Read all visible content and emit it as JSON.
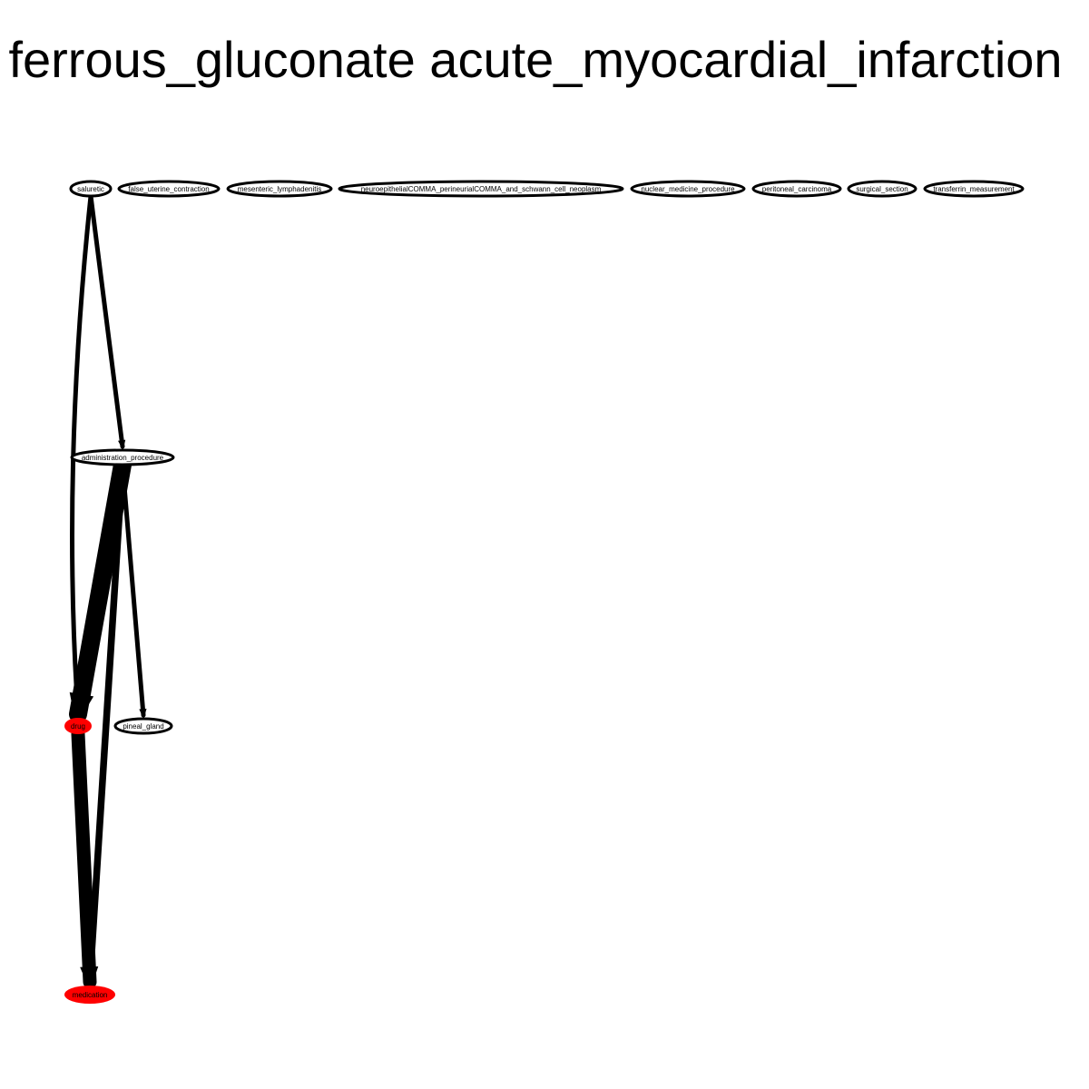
{
  "title": "ferrous_gluconate acute_myocardial_infarction",
  "colors": {
    "highlight": "#ff0000",
    "default_fill": "#ffffff",
    "stroke": "#000000"
  },
  "nodes": [
    {
      "id": "saluretic",
      "label": "saluretic",
      "highlight": false
    },
    {
      "id": "false_uterine_contraction",
      "label": "false_uterine_contraction",
      "highlight": false
    },
    {
      "id": "mesenteric_lymphadenitis",
      "label": "mesenteric_lymphadenitis",
      "highlight": false
    },
    {
      "id": "neuroepithelial",
      "label": "neuroepithelialCOMMA_perineurialCOMMA_and_schwann_cell_neoplasm",
      "highlight": false
    },
    {
      "id": "nuclear_medicine_procedure",
      "label": "nuclear_medicine_procedure",
      "highlight": false
    },
    {
      "id": "peritoneal_carcinoma",
      "label": "peritoneal_carcinoma",
      "highlight": false
    },
    {
      "id": "surgical_section",
      "label": "surgical_section",
      "highlight": false
    },
    {
      "id": "transferrin_measurement",
      "label": "transferrin_measurement",
      "highlight": false
    },
    {
      "id": "administration_procedure",
      "label": "administration_procedure",
      "highlight": false
    },
    {
      "id": "drug",
      "label": "drug",
      "highlight": true
    },
    {
      "id": "pineal_gland",
      "label": "pineal_gland",
      "highlight": false
    },
    {
      "id": "medication",
      "label": "medication",
      "highlight": true
    }
  ],
  "edges": [
    {
      "source": "saluretic",
      "target": "administration_procedure",
      "weight": 1
    },
    {
      "source": "saluretic",
      "target": "drug",
      "weight": 1
    },
    {
      "source": "administration_procedure",
      "target": "drug",
      "weight": 4
    },
    {
      "source": "administration_procedure",
      "target": "pineal_gland",
      "weight": 1
    },
    {
      "source": "administration_procedure",
      "target": "medication",
      "weight": 1.5
    },
    {
      "source": "drug",
      "target": "medication",
      "weight": 3
    }
  ]
}
